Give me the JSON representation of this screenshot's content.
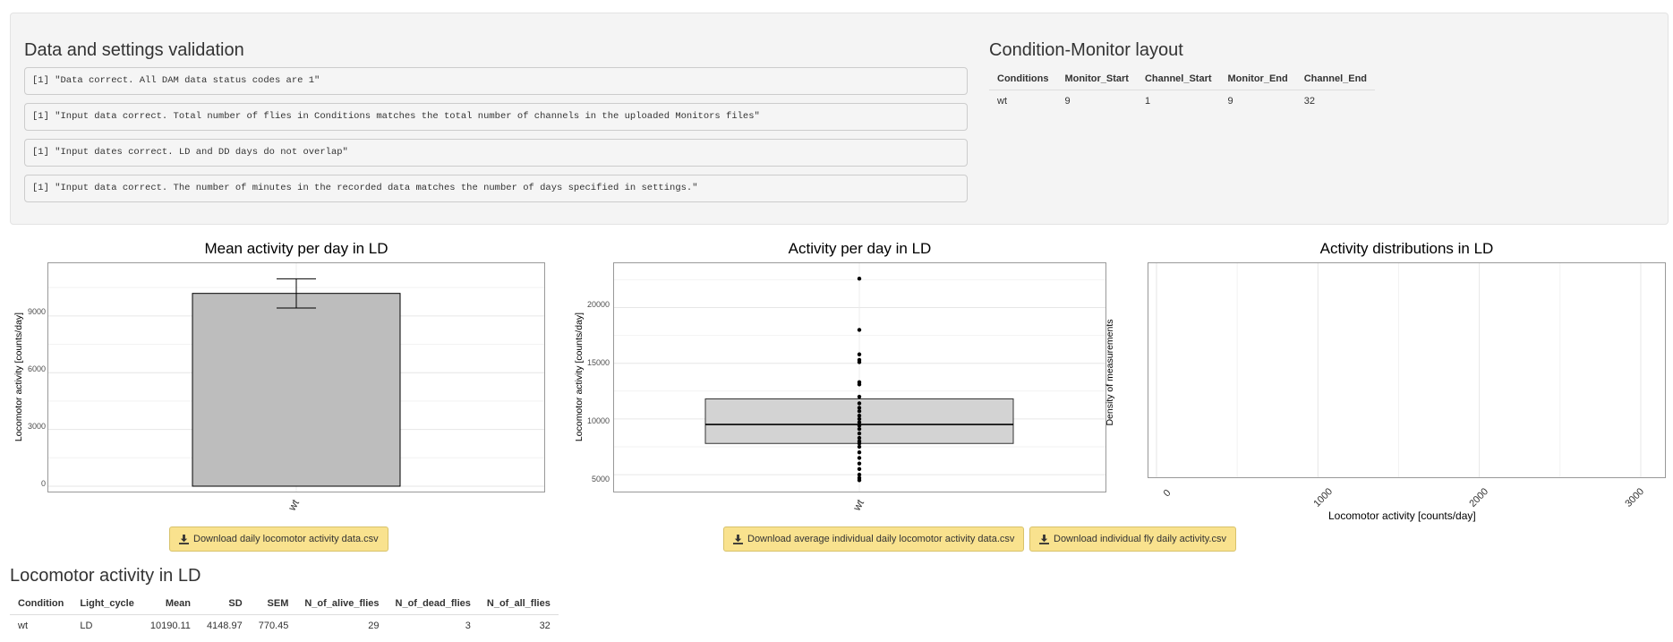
{
  "validation": {
    "title": "Data and settings validation",
    "messages": [
      "[1] \"Data correct. All DAM data status codes are 1\"",
      "[1] \"Input data correct. Total number of flies in Conditions matches the total number of channels in the uploaded Monitors files\"",
      "[1] \"Input dates correct. LD and DD days do not overlap\"",
      "[1] \"Input data correct. The number of minutes in the recorded data matches the number of days specified in settings.\""
    ]
  },
  "layout": {
    "title": "Condition-Monitor layout",
    "columns": [
      "Conditions",
      "Monitor_Start",
      "Channel_Start",
      "Monitor_End",
      "Channel_End"
    ],
    "rows": [
      [
        "wt",
        "9",
        "1",
        "9",
        "32"
      ]
    ]
  },
  "charts": {
    "mean": {
      "title": "Mean activity per day in LD",
      "ylabel": "Locomotor activity [counts/day]",
      "yticks": [
        "9000",
        "6000",
        "3000",
        "0"
      ]
    },
    "box": {
      "title": "Activity per day in LD",
      "ylabel": "Locomotor activity [counts/day]",
      "yticks": [
        "20000",
        "15000",
        "10000",
        "5000"
      ]
    },
    "density": {
      "title": "Activity distributions in LD",
      "ylabel": "Density of measurements",
      "xlabel": "Locomotor activity [counts/day]",
      "xticks": [
        "0",
        "1000",
        "2000",
        "3000"
      ]
    }
  },
  "chart_data": [
    {
      "type": "bar",
      "title": "Mean activity per day in LD",
      "xlabel": "",
      "ylabel": "Locomotor activity [counts/day]",
      "categories": [
        "wt"
      ],
      "values": [
        10190.11
      ],
      "error": [
        770.45
      ],
      "ylim": [
        0,
        11500
      ]
    },
    {
      "type": "box",
      "title": "Activity per day in LD",
      "xlabel": "",
      "ylabel": "Locomotor activity [counts/day]",
      "categories": [
        "wt"
      ],
      "box": {
        "q1": 7800,
        "median": 9500,
        "q3": 11800
      },
      "points": [
        22600,
        18000,
        15800,
        15300,
        15100,
        13300,
        13100,
        12000,
        11400,
        11000,
        10700,
        10300,
        10000,
        9700,
        9400,
        9100,
        8700,
        8300,
        8000,
        7800,
        7500,
        7000,
        6500,
        6000,
        5500,
        5000,
        4700,
        4500
      ],
      "ylim": [
        3800,
        23500
      ]
    },
    {
      "type": "area",
      "title": "Activity distributions in LD",
      "xlabel": "Locomotor activity [counts/day]",
      "ylabel": "Density of measurements",
      "x": [],
      "y": [],
      "xlim": [
        -50,
        3150
      ]
    }
  ],
  "buttons": {
    "dl_daily": "Download daily locomotor activity data.csv",
    "dl_avg_individual": "Download average individual daily locomotor activity data.csv",
    "dl_individual_fly": "Download individual fly daily activity.csv"
  },
  "summary": {
    "title": "Locomotor activity in LD",
    "columns": [
      "Condition",
      "Light_cycle",
      "Mean",
      "SD",
      "SEM",
      "N_of_alive_flies",
      "N_of_dead_flies",
      "N_of_all_flies"
    ],
    "rows": [
      [
        "wt",
        "LD",
        "10190.11",
        "4148.97",
        "770.45",
        "29",
        "3",
        "32"
      ]
    ]
  }
}
